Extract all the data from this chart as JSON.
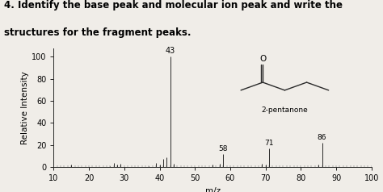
{
  "title_line1": "4. Identify the base peak and molecular ion peak and write the",
  "title_line2": "structures for the fragment peaks.",
  "xlabel": "m/z",
  "ylabel": "Relative Intensity",
  "xlim": [
    10,
    100
  ],
  "ylim": [
    0,
    108
  ],
  "yticks": [
    0,
    20,
    40,
    60,
    80,
    100
  ],
  "xticks": [
    10,
    20,
    30,
    40,
    50,
    60,
    70,
    80,
    90,
    100
  ],
  "compound_label": "2-pentanone",
  "peaks": {
    "15": 2,
    "26": 1,
    "27": 4,
    "28": 2,
    "29": 3,
    "37": 1,
    "39": 4,
    "40": 2,
    "41": 7,
    "42": 9,
    "43": 100,
    "44": 3,
    "55": 2,
    "57": 3,
    "58": 12,
    "69": 3,
    "70": 2,
    "71": 17,
    "85": 2,
    "86": 22
  },
  "bar_color": "#2a2a2a",
  "tick_color": "#2a2a2a",
  "bg_color": "#f0ede8",
  "plot_bg": "#f0ede8",
  "title_fontsize": 8.5,
  "label_fontsize": 7.5,
  "tick_fontsize": 7,
  "peak_label_fontsize": 7
}
